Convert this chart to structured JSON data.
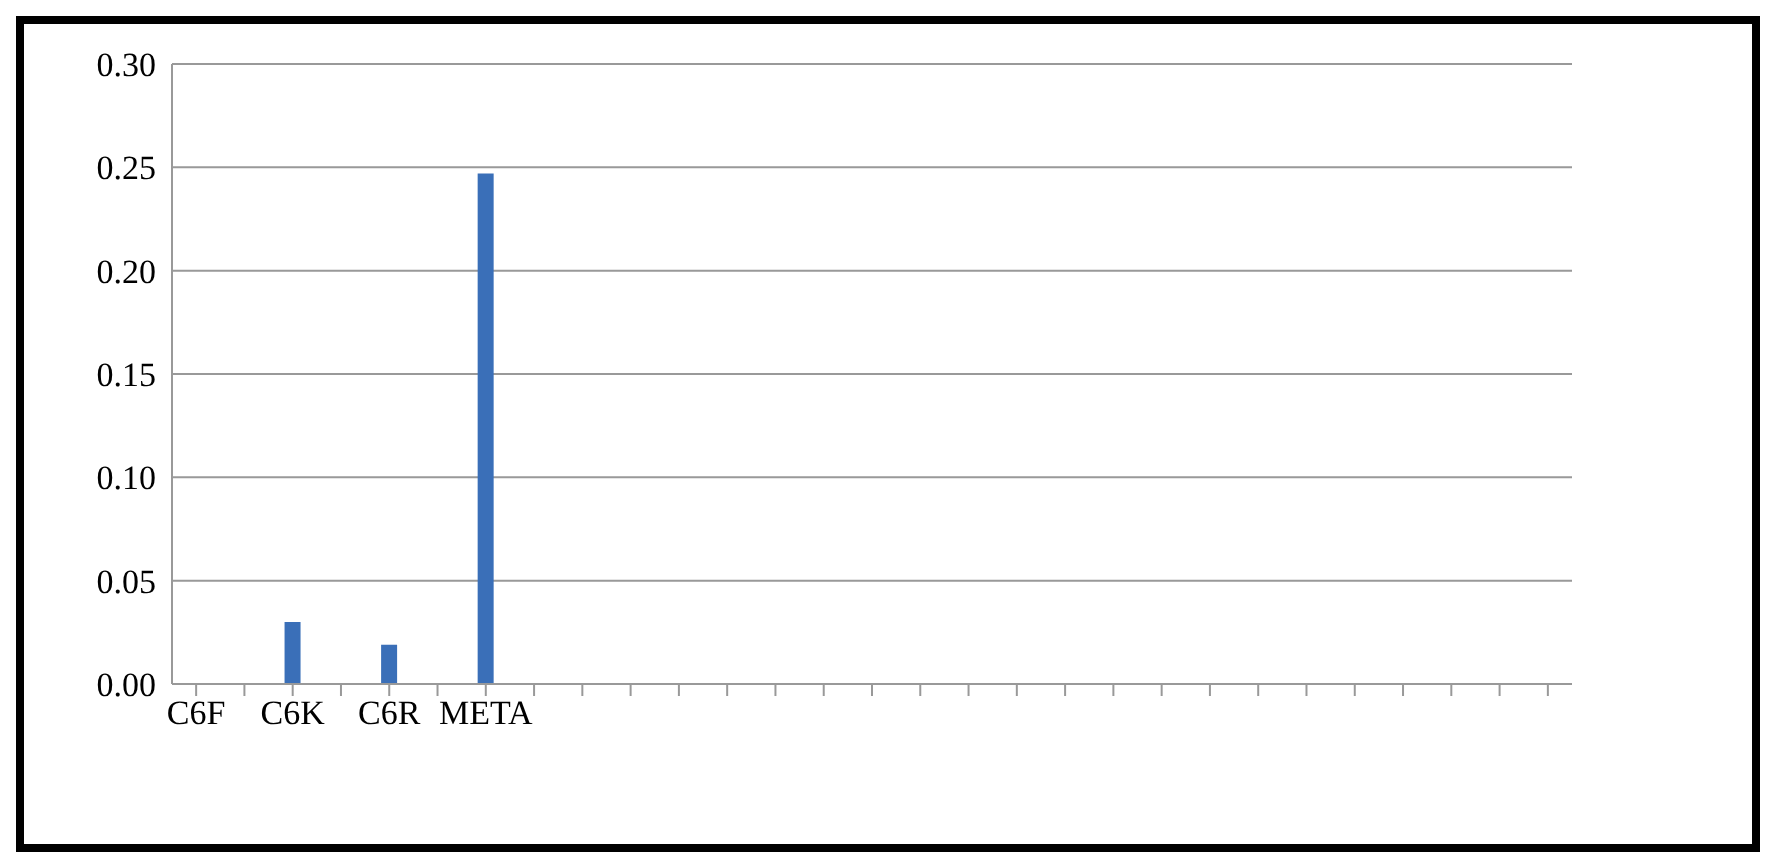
{
  "chart_data": {
    "type": "bar",
    "categories": [
      "C6F",
      null,
      "C6K",
      null,
      "C6R",
      null,
      "META",
      null,
      null,
      null,
      null,
      null,
      null,
      null,
      null,
      null,
      null,
      null,
      null,
      null,
      null,
      null,
      null,
      null,
      null,
      null,
      null,
      null,
      null
    ],
    "values": [
      null,
      null,
      0.03,
      null,
      0.019,
      null,
      0.247,
      null,
      null,
      null,
      null,
      null,
      null,
      null,
      null,
      null,
      null,
      null,
      null,
      null,
      null,
      null,
      null,
      null,
      null,
      null,
      null,
      null,
      null
    ],
    "color": "#3a6fb8",
    "ylim": [
      0,
      0.3
    ],
    "yticks": [
      {
        "value": 0,
        "label": "0.00"
      },
      {
        "value": 0.05,
        "label": "0.05"
      },
      {
        "value": 0.1,
        "label": "0.10"
      },
      {
        "value": 0.15,
        "label": "0.15"
      },
      {
        "value": 0.2,
        "label": "0.20"
      },
      {
        "value": 0.25,
        "label": "0.25"
      },
      {
        "value": 0.3,
        "label": "0.30"
      }
    ],
    "grid": "y"
  }
}
